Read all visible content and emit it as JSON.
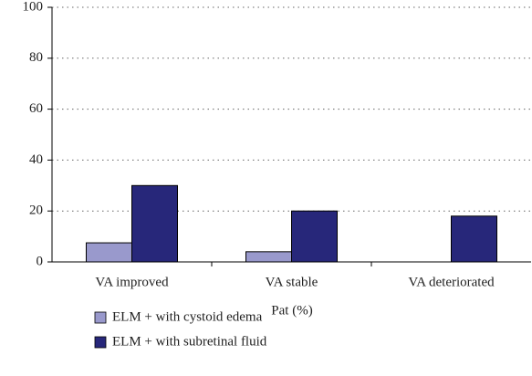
{
  "chart_data": {
    "type": "bar",
    "x_label": "Pat (%)",
    "categories": [
      "VA improved",
      "VA stable",
      "VA deteriorated"
    ],
    "series": [
      {
        "name": "ELM + with cystoid edema",
        "color": "#9999cc",
        "values": [
          7.5,
          4,
          0
        ]
      },
      {
        "name": "ELM + with subretinal fluid",
        "color": "#27277a",
        "values": [
          30,
          20,
          18
        ]
      }
    ],
    "ylim": [
      0,
      100
    ],
    "yticks": [
      0,
      20,
      40,
      60,
      80,
      100
    ],
    "grid": true,
    "legend": "bottom-left"
  }
}
